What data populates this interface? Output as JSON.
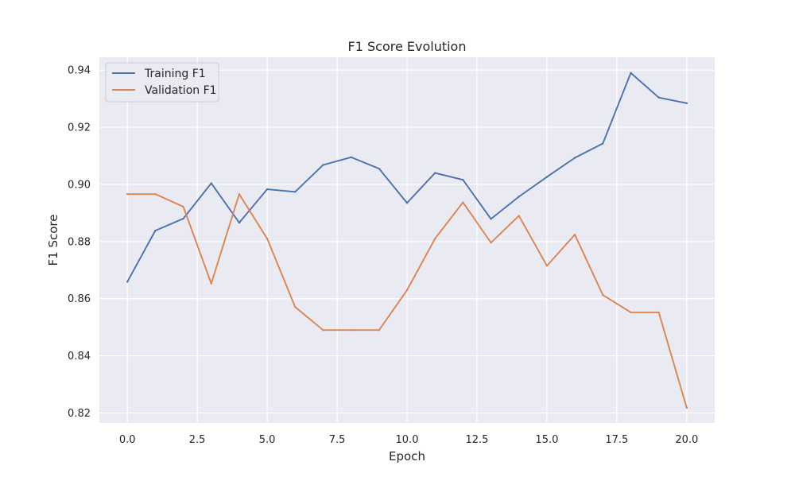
{
  "chart_data": {
    "type": "line",
    "title": "F1 Score Evolution",
    "xlabel": "Epoch",
    "ylabel": "F1 Score",
    "xlim": [
      -1.0,
      21.0
    ],
    "ylim": [
      0.8165,
      0.9445
    ],
    "grid": true,
    "legend_position": "top-left",
    "x_ticks": [
      0.0,
      2.5,
      5.0,
      7.5,
      10.0,
      12.5,
      15.0,
      17.5,
      20.0
    ],
    "x_tick_labels": [
      "0.0",
      "2.5",
      "5.0",
      "7.5",
      "10.0",
      "12.5",
      "15.0",
      "17.5",
      "20.0"
    ],
    "y_ticks": [
      0.82,
      0.84,
      0.86,
      0.88,
      0.9,
      0.92,
      0.94
    ],
    "y_tick_labels": [
      "0.82",
      "0.84",
      "0.86",
      "0.88",
      "0.90",
      "0.92",
      "0.94"
    ],
    "x": [
      0,
      1,
      2,
      3,
      4,
      5,
      6,
      7,
      8,
      9,
      10,
      11,
      12,
      13,
      14,
      15,
      16,
      17,
      18,
      19,
      20
    ],
    "series": [
      {
        "name": "Training F1",
        "color": "#4c72b0",
        "values": [
          0.8659,
          0.8838,
          0.888,
          0.9004,
          0.8866,
          0.8983,
          0.8974,
          0.9068,
          0.9095,
          0.9055,
          0.8935,
          0.904,
          0.9016,
          0.8879,
          0.8957,
          0.9026,
          0.9093,
          0.9143,
          0.939,
          0.9304,
          0.9284
        ]
      },
      {
        "name": "Validation F1",
        "color": "#dd8452",
        "values": [
          0.8966,
          0.8966,
          0.8922,
          0.8653,
          0.8966,
          0.881,
          0.8571,
          0.849,
          0.849,
          0.849,
          0.863,
          0.881,
          0.8937,
          0.8796,
          0.889,
          0.8715,
          0.8824,
          0.8613,
          0.8552,
          0.8552,
          0.8218
        ]
      }
    ]
  },
  "style": {
    "plot_background": "#eaeaf2",
    "grid_color": "#ffffff",
    "text_color": "#262626"
  }
}
